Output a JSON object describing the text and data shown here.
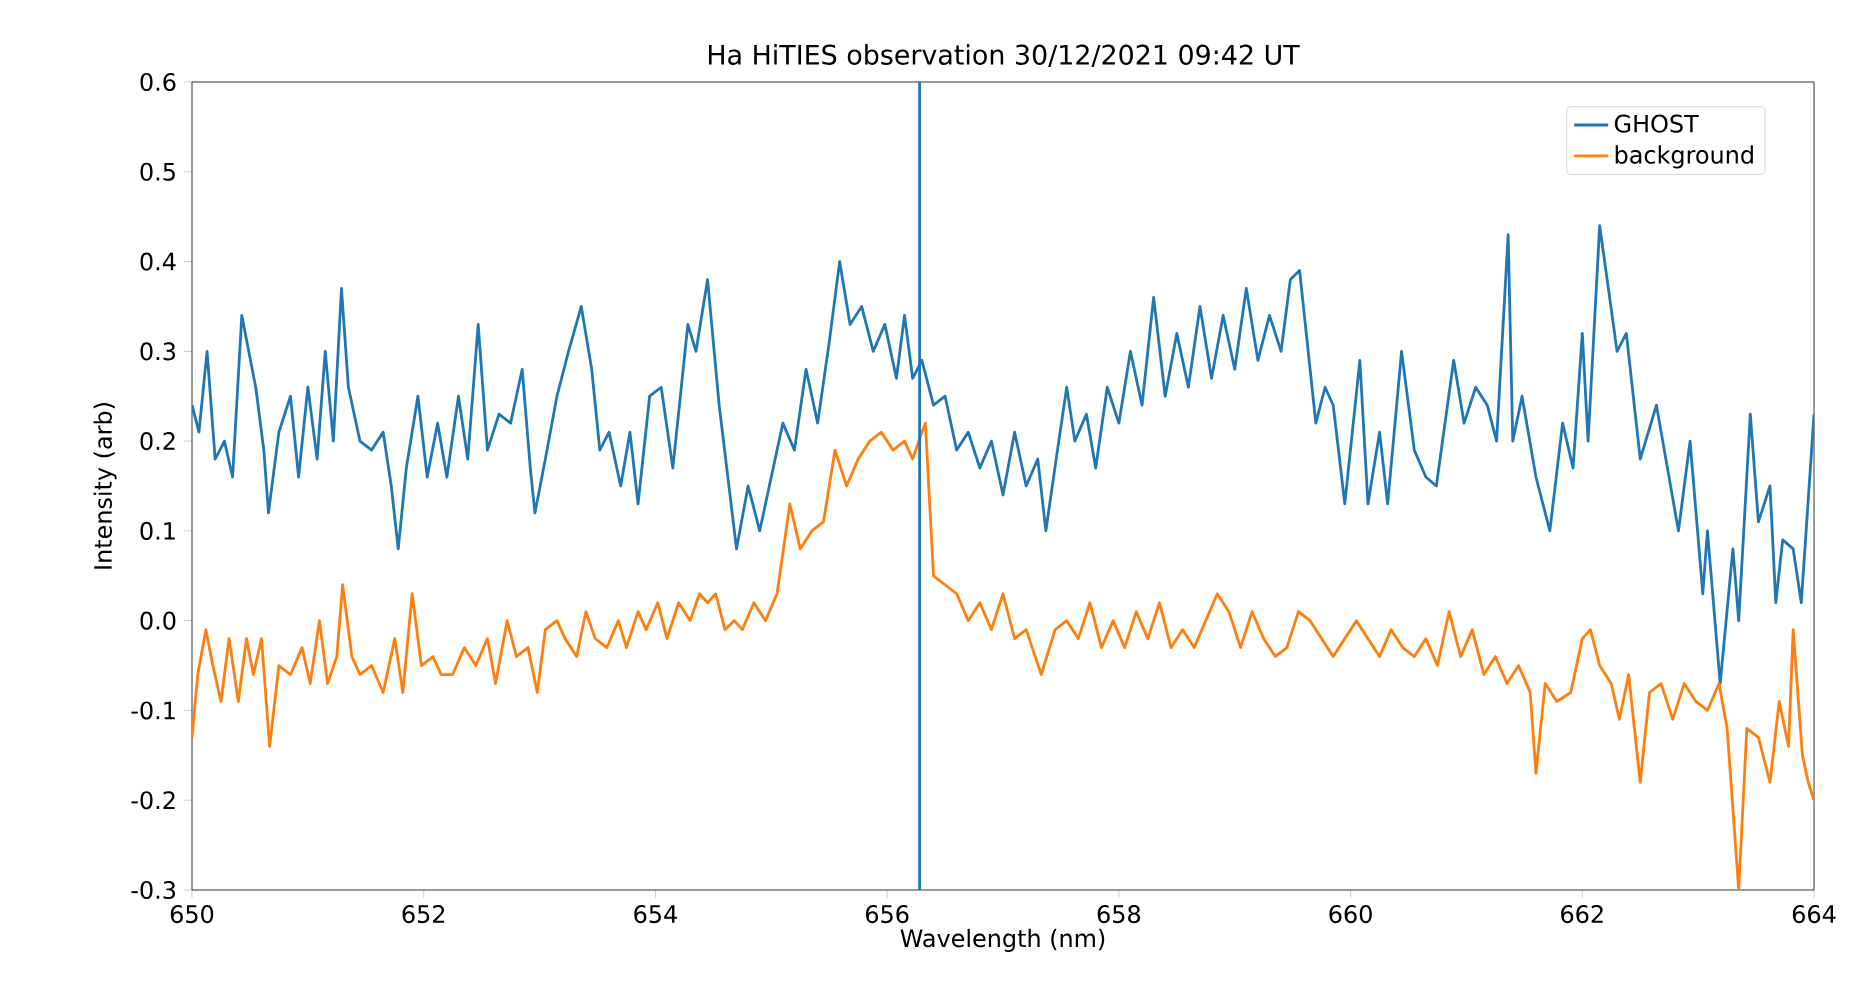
{
  "chart_data": {
    "type": "line",
    "title": "Ha HiTIES observation 30/12/2021 09:42 UT",
    "xlabel": "Wavelength (nm)",
    "ylabel": "Intensity (arb)",
    "xlim": [
      650,
      664
    ],
    "ylim": [
      -0.3,
      0.6
    ],
    "xticks": [
      650,
      652,
      654,
      656,
      658,
      660,
      662,
      664
    ],
    "yticks": [
      -0.3,
      -0.2,
      -0.1,
      {
        "value": 0,
        "label": "0.0"
      },
      0.1,
      0.2,
      0.3,
      0.4,
      0.5,
      0.6
    ],
    "legend": "top right",
    "grid": false,
    "marker": "none",
    "line_style": "solid",
    "ref_lines": [
      {
        "axis": "x",
        "value": 656.28,
        "color": "#1f77b4"
      }
    ],
    "series": [
      {
        "name": "GHOST",
        "color": "#1f77b4",
        "x": [
          650.0,
          650.06,
          650.13,
          650.2,
          650.28,
          650.35,
          650.43,
          650.55,
          650.62,
          650.66,
          650.75,
          650.85,
          650.92,
          651.0,
          651.08,
          651.15,
          651.22,
          651.29,
          651.35,
          651.45,
          651.55,
          651.65,
          651.72,
          651.78,
          651.85,
          651.95,
          652.03,
          652.12,
          652.2,
          652.3,
          652.38,
          652.47,
          652.55,
          652.65,
          652.75,
          652.85,
          652.92,
          652.96,
          653.05,
          653.15,
          653.25,
          653.36,
          653.45,
          653.52,
          653.6,
          653.7,
          653.78,
          653.85,
          653.95,
          654.05,
          654.15,
          654.28,
          654.35,
          654.45,
          654.55,
          654.7,
          654.8,
          654.9,
          655.0,
          655.1,
          655.2,
          655.3,
          655.4,
          655.5,
          655.59,
          655.68,
          655.78,
          655.88,
          655.98,
          656.08,
          656.15,
          656.22,
          656.3,
          656.4,
          656.5,
          656.6,
          656.7,
          656.8,
          656.9,
          657.0,
          657.1,
          657.2,
          657.3,
          657.37,
          657.47,
          657.55,
          657.62,
          657.72,
          657.8,
          657.9,
          658.0,
          658.1,
          658.2,
          658.3,
          658.4,
          658.5,
          658.6,
          658.7,
          658.8,
          658.9,
          659.0,
          659.1,
          659.2,
          659.3,
          659.4,
          659.48,
          659.56,
          659.7,
          659.78,
          659.85,
          659.95,
          660.08,
          660.15,
          660.25,
          660.32,
          660.44,
          660.55,
          660.65,
          660.74,
          660.89,
          660.98,
          661.08,
          661.18,
          661.26,
          661.36,
          661.4,
          661.48,
          661.6,
          661.72,
          661.83,
          661.92,
          662.0,
          662.05,
          662.15,
          662.3,
          662.38,
          662.5,
          662.64,
          662.83,
          662.93,
          663.04,
          663.08,
          663.19,
          663.3,
          663.35,
          663.45,
          663.52,
          663.62,
          663.67,
          663.73,
          663.82,
          663.89,
          664.0
        ],
        "values": [
          0.24,
          0.21,
          0.3,
          0.18,
          0.2,
          0.16,
          0.34,
          0.26,
          0.19,
          0.12,
          0.21,
          0.25,
          0.16,
          0.26,
          0.18,
          0.3,
          0.2,
          0.37,
          0.26,
          0.2,
          0.19,
          0.21,
          0.15,
          0.08,
          0.17,
          0.25,
          0.16,
          0.22,
          0.16,
          0.25,
          0.18,
          0.33,
          0.19,
          0.23,
          0.22,
          0.28,
          0.17,
          0.12,
          0.18,
          0.25,
          0.3,
          0.35,
          0.28,
          0.19,
          0.21,
          0.15,
          0.21,
          0.13,
          0.25,
          0.26,
          0.17,
          0.33,
          0.3,
          0.38,
          0.24,
          0.08,
          0.15,
          0.1,
          0.16,
          0.22,
          0.19,
          0.28,
          0.22,
          0.31,
          0.4,
          0.33,
          0.35,
          0.3,
          0.33,
          0.27,
          0.34,
          0.27,
          0.29,
          0.24,
          0.25,
          0.19,
          0.21,
          0.17,
          0.2,
          0.14,
          0.21,
          0.15,
          0.18,
          0.1,
          0.19,
          0.26,
          0.2,
          0.23,
          0.17,
          0.26,
          0.22,
          0.3,
          0.24,
          0.36,
          0.25,
          0.32,
          0.26,
          0.35,
          0.27,
          0.34,
          0.28,
          0.37,
          0.29,
          0.34,
          0.3,
          0.38,
          0.39,
          0.22,
          0.26,
          0.24,
          0.13,
          0.29,
          0.13,
          0.21,
          0.13,
          0.3,
          0.19,
          0.16,
          0.15,
          0.29,
          0.22,
          0.26,
          0.24,
          0.2,
          0.43,
          0.2,
          0.25,
          0.16,
          0.1,
          0.22,
          0.17,
          0.32,
          0.2,
          0.44,
          0.3,
          0.32,
          0.18,
          0.24,
          0.1,
          0.2,
          0.03,
          0.1,
          -0.07,
          0.08,
          0.0,
          0.23,
          0.11,
          0.15,
          0.02,
          0.09,
          0.08,
          0.02,
          0.23
        ]
      },
      {
        "name": "background",
        "color": "#ff7f0e",
        "x": [
          650.0,
          650.05,
          650.12,
          650.18,
          650.25,
          650.32,
          650.4,
          650.47,
          650.53,
          650.6,
          650.67,
          650.75,
          650.85,
          650.95,
          651.02,
          651.1,
          651.17,
          651.25,
          651.3,
          651.38,
          651.45,
          651.55,
          651.65,
          651.75,
          651.82,
          651.9,
          651.98,
          652.08,
          652.15,
          652.25,
          652.35,
          652.45,
          652.55,
          652.62,
          652.72,
          652.8,
          652.9,
          652.98,
          653.05,
          653.15,
          653.22,
          653.32,
          653.4,
          653.48,
          653.58,
          653.68,
          653.75,
          653.85,
          653.92,
          654.02,
          654.1,
          654.2,
          654.3,
          654.38,
          654.45,
          654.52,
          654.6,
          654.68,
          654.75,
          654.85,
          654.95,
          655.05,
          655.16,
          655.25,
          655.35,
          655.45,
          655.55,
          655.65,
          655.75,
          655.85,
          655.95,
          656.05,
          656.15,
          656.22,
          656.3,
          656.33,
          656.4,
          656.5,
          656.6,
          656.7,
          656.8,
          656.9,
          657.0,
          657.1,
          657.2,
          657.33,
          657.45,
          657.55,
          657.65,
          657.75,
          657.85,
          657.95,
          658.05,
          658.15,
          658.25,
          658.35,
          658.45,
          658.55,
          658.65,
          658.75,
          658.85,
          658.95,
          659.05,
          659.15,
          659.25,
          659.35,
          659.45,
          659.55,
          659.65,
          659.75,
          659.85,
          659.95,
          660.05,
          660.15,
          660.25,
          660.35,
          660.45,
          660.55,
          660.65,
          660.75,
          660.85,
          660.95,
          661.05,
          661.15,
          661.25,
          661.35,
          661.45,
          661.55,
          661.6,
          661.68,
          661.78,
          661.9,
          662.0,
          662.07,
          662.15,
          662.25,
          662.32,
          662.4,
          662.5,
          662.58,
          662.68,
          662.78,
          662.88,
          662.98,
          663.08,
          663.18,
          663.25,
          663.35,
          663.42,
          663.52,
          663.62,
          663.7,
          663.78,
          663.82,
          663.9,
          663.95,
          664.0
        ],
        "values": [
          -0.13,
          -0.06,
          -0.01,
          -0.05,
          -0.09,
          -0.02,
          -0.09,
          -0.02,
          -0.06,
          -0.02,
          -0.14,
          -0.05,
          -0.06,
          -0.03,
          -0.07,
          0.0,
          -0.07,
          -0.04,
          0.04,
          -0.04,
          -0.06,
          -0.05,
          -0.08,
          -0.02,
          -0.08,
          0.03,
          -0.05,
          -0.04,
          -0.06,
          -0.06,
          -0.03,
          -0.05,
          -0.02,
          -0.07,
          0.0,
          -0.04,
          -0.03,
          -0.08,
          -0.01,
          0.0,
          -0.02,
          -0.04,
          0.01,
          -0.02,
          -0.03,
          0.0,
          -0.03,
          0.01,
          -0.01,
          0.02,
          -0.02,
          0.02,
          0.0,
          0.03,
          0.02,
          0.03,
          -0.01,
          0.0,
          -0.01,
          0.02,
          0.0,
          0.03,
          0.13,
          0.08,
          0.1,
          0.11,
          0.19,
          0.15,
          0.18,
          0.2,
          0.21,
          0.19,
          0.2,
          0.18,
          0.21,
          0.22,
          0.05,
          0.04,
          0.03,
          0.0,
          0.02,
          -0.01,
          0.03,
          -0.02,
          -0.01,
          -0.06,
          -0.01,
          0.0,
          -0.02,
          0.02,
          -0.03,
          0.0,
          -0.03,
          0.01,
          -0.02,
          0.02,
          -0.03,
          -0.01,
          -0.03,
          0.0,
          0.03,
          0.01,
          -0.03,
          0.01,
          -0.02,
          -0.04,
          -0.03,
          0.01,
          0.0,
          -0.02,
          -0.04,
          -0.02,
          0.0,
          -0.02,
          -0.04,
          -0.01,
          -0.03,
          -0.04,
          -0.02,
          -0.05,
          0.01,
          -0.04,
          -0.01,
          -0.06,
          -0.04,
          -0.07,
          -0.05,
          -0.08,
          -0.17,
          -0.07,
          -0.09,
          -0.08,
          -0.02,
          -0.01,
          -0.05,
          -0.07,
          -0.11,
          -0.06,
          -0.18,
          -0.08,
          -0.07,
          -0.11,
          -0.07,
          -0.09,
          -0.1,
          -0.07,
          -0.12,
          -0.3,
          -0.12,
          -0.13,
          -0.18,
          -0.09,
          -0.14,
          -0.01,
          -0.15,
          -0.18,
          -0.2
        ]
      }
    ]
  }
}
